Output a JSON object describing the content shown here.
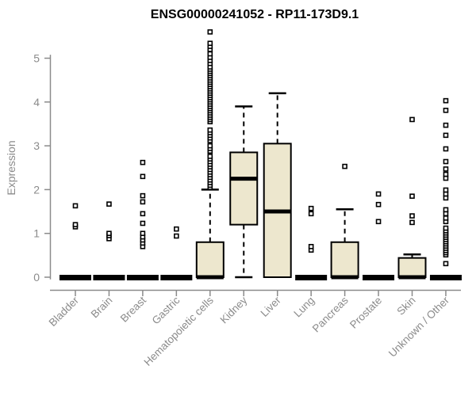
{
  "chart_data": {
    "type": "boxplot",
    "title": "ENSG00000241052 - RP11-173D9.1",
    "ylabel": "Expression",
    "xlabel": "",
    "ylim": [
      -0.15,
      5.65
    ],
    "yticks": [
      0,
      1,
      2,
      3,
      4,
      5
    ],
    "grid": false,
    "legend": false,
    "box_fill": "#EDE7CE",
    "box_stroke": "#000000",
    "axis_color": "#8b8b8b",
    "title_color": "#000000",
    "categories": [
      "Bladder",
      "Brain",
      "Breast",
      "Gastric",
      "Hematopoietic cells",
      "Kidney",
      "Liver",
      "Lung",
      "Pancreas",
      "Prostate",
      "Skin",
      "Unknown / Other"
    ],
    "series": [
      {
        "category": "Bladder",
        "low": 0,
        "q1": 0,
        "median": 0,
        "q3": 0,
        "high": 0,
        "outliers": [
          1.15,
          1.2,
          1.63
        ]
      },
      {
        "category": "Brain",
        "low": 0,
        "q1": 0,
        "median": 0,
        "q3": 0,
        "high": 0,
        "outliers": [
          0.88,
          0.95,
          1.0,
          1.67
        ]
      },
      {
        "category": "Breast",
        "low": 0,
        "q1": 0,
        "median": 0,
        "q3": 0,
        "high": 0,
        "outliers": [
          0.7,
          0.78,
          0.85,
          0.92,
          1.0,
          1.23,
          1.45,
          1.72,
          1.86,
          2.3,
          2.62
        ]
      },
      {
        "category": "Gastric",
        "low": 0,
        "q1": 0,
        "median": 0,
        "q3": 0,
        "high": 0,
        "outliers": [
          0.94,
          1.1
        ]
      },
      {
        "category": "Hematopoietic cells",
        "low": 0,
        "q1": 0,
        "median": 0,
        "q3": 0.8,
        "high": 2.0,
        "outliers": [
          2.05,
          2.1,
          2.16,
          2.22,
          2.28,
          2.34,
          2.4,
          2.46,
          2.52,
          2.58,
          2.64,
          2.7,
          2.76,
          2.88,
          2.94,
          3.0,
          3.12,
          3.18,
          3.24,
          3.3,
          3.36,
          3.55,
          3.6,
          3.65,
          3.7,
          3.75,
          3.8,
          3.85,
          3.9,
          3.95,
          4.0,
          4.05,
          4.1,
          4.15,
          4.2,
          4.25,
          4.3,
          4.35,
          4.4,
          4.45,
          4.5,
          4.55,
          4.6,
          4.65,
          4.7,
          4.75,
          4.8,
          4.88,
          4.95,
          5.02,
          5.1,
          5.2,
          5.27,
          5.34,
          5.6
        ]
      },
      {
        "category": "Kidney",
        "low": 0,
        "q1": 1.2,
        "median": 2.25,
        "q3": 2.85,
        "high": 3.9,
        "outliers": []
      },
      {
        "category": "Liver",
        "low": 0,
        "q1": 0,
        "median": 1.5,
        "q3": 3.05,
        "high": 4.2,
        "outliers": []
      },
      {
        "category": "Lung",
        "low": 0,
        "q1": 0,
        "median": 0,
        "q3": 0,
        "high": 0,
        "outliers": [
          0.62,
          0.7,
          1.45,
          1.57
        ]
      },
      {
        "category": "Pancreas",
        "low": 0,
        "q1": 0,
        "median": 0,
        "q3": 0.8,
        "high": 1.55,
        "outliers": [
          2.53
        ]
      },
      {
        "category": "Prostate",
        "low": 0,
        "q1": 0,
        "median": 0,
        "q3": 0,
        "high": 0,
        "outliers": [
          1.27,
          1.66,
          1.9
        ]
      },
      {
        "category": "Skin",
        "low": 0,
        "q1": 0,
        "median": 0,
        "q3": 0.44,
        "high": 0.52,
        "outliers": [
          1.25,
          1.4,
          1.85,
          3.6
        ]
      },
      {
        "category": "Unknown / Other",
        "low": 0,
        "q1": 0,
        "median": 0,
        "q3": 0,
        "high": 0,
        "outliers": [
          0.31,
          0.51,
          0.56,
          0.61,
          0.66,
          0.71,
          0.76,
          0.81,
          0.86,
          0.91,
          0.96,
          1.01,
          1.06,
          1.12,
          1.27,
          1.35,
          1.45,
          1.54,
          1.81,
          1.9,
          1.99,
          2.26,
          2.35,
          2.47,
          2.64,
          2.93,
          3.24,
          3.47,
          3.81,
          4.03
        ]
      }
    ]
  }
}
